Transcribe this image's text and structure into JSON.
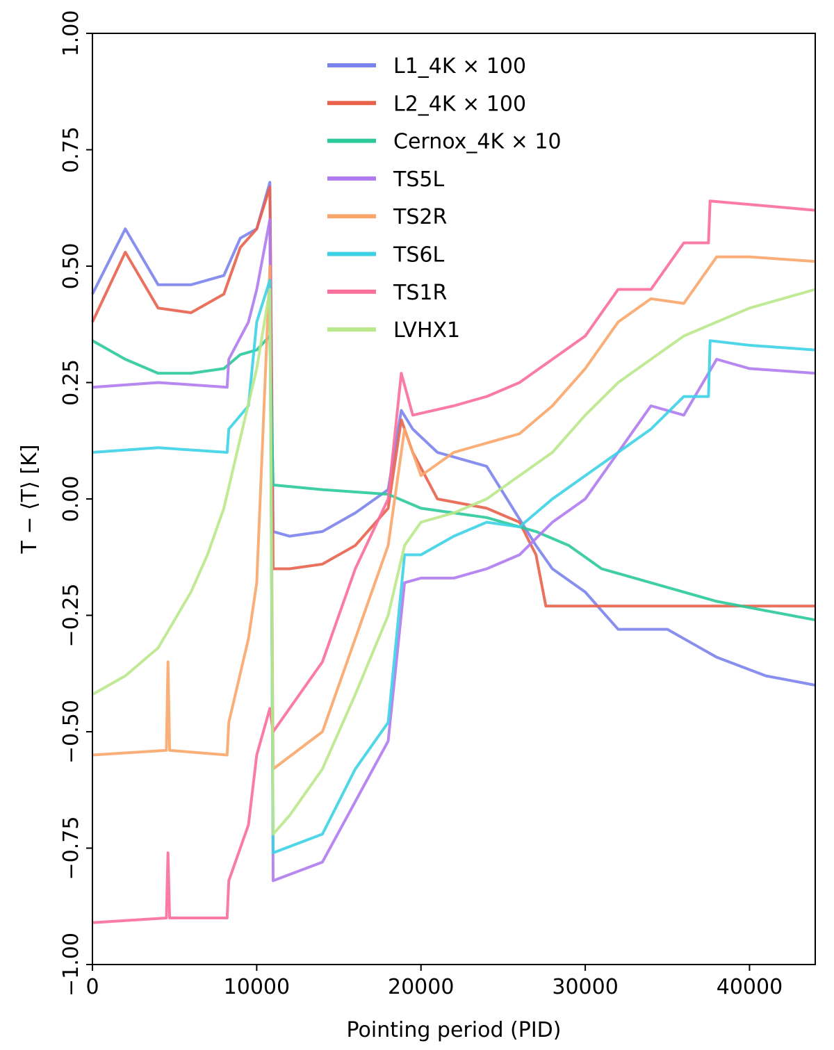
{
  "chart_data": {
    "type": "line",
    "title": "",
    "xlabel": "Pointing period (PID)",
    "ylabel": "T − ⟨T⟩ [K]",
    "xlim": [
      0,
      44000
    ],
    "ylim": [
      -1.0,
      1.0
    ],
    "x_ticks": [
      0,
      10000,
      20000,
      30000,
      40000
    ],
    "x_tick_labels": [
      "0",
      "10000",
      "20000",
      "30000",
      "40000"
    ],
    "y_ticks": [
      -1.0,
      -0.75,
      -0.5,
      -0.25,
      0.0,
      0.25,
      0.5,
      0.75,
      1.0
    ],
    "y_tick_labels": [
      "−1.00",
      "−0.75",
      "−0.50",
      "−0.25",
      "0.00",
      "0.25",
      "0.50",
      "0.75",
      "1.00"
    ],
    "grid": false,
    "legend_position": "top-center",
    "series": [
      {
        "name": "L1_4K × 100",
        "color": "#7b83ec",
        "x": [
          0,
          2000,
          4000,
          6000,
          8000,
          9000,
          10000,
          10800,
          11000,
          12000,
          14000,
          16000,
          18000,
          18800,
          19500,
          21000,
          24000,
          27000,
          28000,
          30000,
          31000,
          32000,
          35000,
          38000,
          41000,
          44000
        ],
        "y": [
          0.44,
          0.58,
          0.46,
          0.46,
          0.48,
          0.56,
          0.58,
          0.68,
          -0.07,
          -0.08,
          -0.07,
          -0.03,
          0.02,
          0.19,
          0.15,
          0.1,
          0.07,
          -0.1,
          -0.15,
          -0.2,
          -0.24,
          -0.28,
          -0.28,
          -0.34,
          -0.38,
          -0.4
        ]
      },
      {
        "name": "L2_4K × 100",
        "color": "#e8624b",
        "x": [
          0,
          2000,
          4000,
          6000,
          8000,
          9000,
          10000,
          10800,
          11000,
          12000,
          14000,
          16000,
          18000,
          18800,
          19500,
          21000,
          24000,
          26000,
          27000,
          27600,
          44000
        ],
        "y": [
          0.38,
          0.53,
          0.41,
          0.4,
          0.44,
          0.54,
          0.58,
          0.67,
          -0.15,
          -0.15,
          -0.14,
          -0.1,
          -0.02,
          0.17,
          0.1,
          0.0,
          -0.02,
          -0.05,
          -0.12,
          -0.23,
          -0.23
        ]
      },
      {
        "name": "Cernox_4K × 10",
        "color": "#2bc99a",
        "x": [
          0,
          2000,
          4000,
          6000,
          8000,
          9000,
          10000,
          10800,
          11000,
          14000,
          18000,
          20000,
          24000,
          27000,
          29000,
          31000,
          35000,
          38000,
          41000,
          44000
        ],
        "y": [
          0.34,
          0.3,
          0.27,
          0.27,
          0.28,
          0.31,
          0.32,
          0.35,
          0.03,
          0.02,
          0.01,
          -0.02,
          -0.04,
          -0.07,
          -0.1,
          -0.15,
          -0.19,
          -0.22,
          -0.24,
          -0.26
        ]
      },
      {
        "name": "TS5L",
        "color": "#b07bf0",
        "x": [
          0,
          4000,
          8200,
          8300,
          9500,
          10000,
          10800,
          11000,
          14000,
          16000,
          18000,
          19000,
          20000,
          22000,
          24000,
          26000,
          28000,
          30000,
          32000,
          34000,
          36000,
          38000,
          40000,
          44000
        ],
        "y": [
          0.24,
          0.25,
          0.24,
          0.3,
          0.38,
          0.45,
          0.6,
          -0.82,
          -0.78,
          -0.65,
          -0.52,
          -0.18,
          -0.17,
          -0.17,
          -0.15,
          -0.12,
          -0.05,
          0.0,
          0.1,
          0.2,
          0.18,
          0.3,
          0.28,
          0.27
        ]
      },
      {
        "name": "TS2R",
        "color": "#f9a66a",
        "x": [
          0,
          4500,
          4600,
          4700,
          8200,
          8300,
          9500,
          10000,
          10800,
          11000,
          14000,
          16000,
          18000,
          19000,
          20000,
          22000,
          24000,
          26000,
          28000,
          30000,
          32000,
          34000,
          36000,
          38000,
          40000,
          44000
        ],
        "y": [
          -0.55,
          -0.54,
          -0.35,
          -0.54,
          -0.55,
          -0.48,
          -0.3,
          -0.18,
          0.5,
          -0.58,
          -0.5,
          -0.3,
          -0.1,
          0.15,
          0.05,
          0.1,
          0.12,
          0.14,
          0.2,
          0.28,
          0.38,
          0.43,
          0.42,
          0.52,
          0.52,
          0.51
        ]
      },
      {
        "name": "TS6L",
        "color": "#3cd2e6",
        "x": [
          0,
          4000,
          8200,
          8300,
          9500,
          10000,
          10800,
          11000,
          14000,
          16000,
          18000,
          19000,
          20000,
          22000,
          24000,
          26000,
          28000,
          30000,
          32000,
          34000,
          36000,
          37500,
          37600,
          40000,
          44000
        ],
        "y": [
          0.1,
          0.11,
          0.1,
          0.15,
          0.2,
          0.38,
          0.47,
          -0.76,
          -0.72,
          -0.58,
          -0.48,
          -0.12,
          -0.12,
          -0.08,
          -0.05,
          -0.06,
          0.0,
          0.05,
          0.1,
          0.15,
          0.22,
          0.22,
          0.34,
          0.33,
          0.32
        ]
      },
      {
        "name": "TS1R",
        "color": "#fa6e9a",
        "x": [
          0,
          4500,
          4600,
          4700,
          8200,
          8300,
          9500,
          10000,
          10800,
          11000,
          14000,
          16000,
          18000,
          18800,
          19500,
          22000,
          24000,
          26000,
          28000,
          30000,
          32000,
          34000,
          36000,
          37500,
          37600,
          44000
        ],
        "y": [
          -0.91,
          -0.9,
          -0.76,
          -0.9,
          -0.9,
          -0.82,
          -0.7,
          -0.55,
          -0.45,
          -0.5,
          -0.35,
          -0.15,
          0.0,
          0.27,
          0.18,
          0.2,
          0.22,
          0.25,
          0.3,
          0.35,
          0.45,
          0.45,
          0.55,
          0.55,
          0.64,
          0.62
        ]
      },
      {
        "name": "LVHX1",
        "color": "#b9e88a",
        "x": [
          0,
          2000,
          4000,
          6000,
          7000,
          8000,
          9000,
          10000,
          10800,
          11000,
          12000,
          14000,
          16000,
          18000,
          19000,
          20000,
          22000,
          24000,
          26000,
          28000,
          30000,
          32000,
          34000,
          36000,
          38000,
          40000,
          42000,
          44000
        ],
        "y": [
          -0.42,
          -0.38,
          -0.32,
          -0.2,
          -0.12,
          -0.02,
          0.13,
          0.28,
          0.45,
          -0.72,
          -0.68,
          -0.58,
          -0.42,
          -0.25,
          -0.1,
          -0.05,
          -0.03,
          0.0,
          0.05,
          0.1,
          0.18,
          0.25,
          0.3,
          0.35,
          0.38,
          0.41,
          0.43,
          0.45
        ]
      }
    ]
  }
}
